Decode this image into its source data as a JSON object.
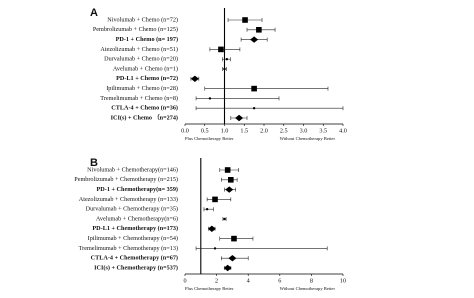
{
  "chart_data": [
    {
      "type": "forest",
      "panel": "A",
      "categories": [
        "Nivolumab + Chemo (n=72)",
        "Pembrolizumab + Chemo (n=125)",
        "PD-1 + Chemo (n= 197)",
        "Atezolizumab + Chemo (n=51)",
        "Durvalumab + Chemo (n=20)",
        "Avelumab + Chemo (n=1)",
        "PD-L1 + Chemo (n=72)",
        "Ipilimumab + Chemo (n=28)",
        "Tremelimumab + Chemo (n=8)",
        "CTLA-4 + Chemo (n=36)",
        "ICI(s) + Chemo （n=274)"
      ],
      "values": [
        1.52,
        1.87,
        1.75,
        0.91,
        1.06,
        1.0,
        0.25,
        1.75,
        0.63,
        1.75,
        1.37
      ],
      "lower": [
        1.09,
        1.57,
        1.42,
        0.63,
        0.95,
        0.95,
        0.15,
        0.5,
        0.28,
        0.28,
        1.16
      ],
      "upper": [
        1.95,
        2.28,
        2.08,
        1.39,
        1.15,
        1.05,
        0.35,
        3.62,
        2.38,
        4.0,
        1.57
      ],
      "markers": [
        "square",
        "square",
        "diamond",
        "square",
        "dot",
        "dot",
        "diamond",
        "square",
        "dot",
        "dot",
        "diamond"
      ],
      "bold": [
        false,
        false,
        true,
        false,
        false,
        false,
        true,
        false,
        false,
        true,
        true
      ],
      "reference": 1,
      "xlim": [
        0,
        4
      ],
      "xticks": [
        {
          "value": 0,
          "label": "0.0"
        },
        0.5,
        {
          "value": 1,
          "label": "1.0"
        },
        1.5,
        {
          "value": 2,
          "label": "2.0"
        },
        2.5,
        {
          "value": 3,
          "label": "3.0"
        },
        3.5,
        {
          "value": 4,
          "label": "4.0"
        }
      ],
      "left_label": "Plus Chemotherapy Better",
      "right_label": "Without Chemotherapy Better"
    },
    {
      "type": "forest",
      "panel": "B",
      "categories": [
        "Nivolumab + Chemotherapy(n=146)",
        "Pembrolizumab + Chemotherapy (n=215)",
        "PD-1 + Chemotherapy(n= 359)",
        "Atezolizumab + Chemotherapy (n=133)",
        "Durvalumab + Chemotherapy (n=35)",
        "Avelumab + Chemotherapy(n=6)",
        "PD-L1 + Chemotherapy (n=173)",
        "Ipilimumab + Chemotherapy (n=54)",
        "Tremelimumab + Chemotherapy (n=13)",
        "CTLA-4 + Chemotherapy (n=67)",
        "ICI(s) + Chemotherapy (n=537)"
      ],
      "values": [
        2.7,
        2.9,
        2.8,
        1.9,
        1.4,
        2.5,
        1.7,
        3.1,
        1.9,
        3.0,
        2.7
      ],
      "lower": [
        2.2,
        2.3,
        2.5,
        1.4,
        1.2,
        2.4,
        1.5,
        2.2,
        0.7,
        2.3,
        2.5
      ],
      "upper": [
        3.4,
        3.3,
        3.2,
        2.9,
        1.8,
        2.6,
        1.9,
        4.3,
        9.0,
        4.0,
        2.9
      ],
      "markers": [
        "square",
        "square",
        "diamond",
        "square",
        "dot",
        "dot",
        "diamond",
        "square",
        "dot",
        "diamond",
        "diamond"
      ],
      "bold": [
        false,
        false,
        true,
        false,
        false,
        false,
        true,
        false,
        false,
        true,
        true
      ],
      "reference": 1,
      "xlim": [
        0,
        10
      ],
      "xticks": [
        0,
        2,
        4,
        6,
        8,
        10
      ],
      "left_label": "Plus Chemotherapy Better",
      "right_label": "Without Chemotherapy Better"
    }
  ]
}
